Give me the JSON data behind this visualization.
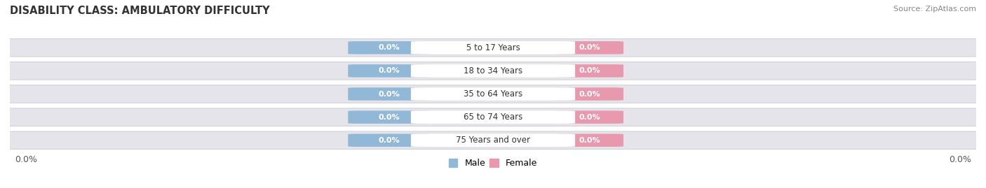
{
  "title": "DISABILITY CLASS: AMBULATORY DIFFICULTY",
  "source": "Source: ZipAtlas.com",
  "categories": [
    "5 to 17 Years",
    "18 to 34 Years",
    "35 to 64 Years",
    "65 to 74 Years",
    "75 Years and over"
  ],
  "male_values": [
    0.0,
    0.0,
    0.0,
    0.0,
    0.0
  ],
  "female_values": [
    0.0,
    0.0,
    0.0,
    0.0,
    0.0
  ],
  "male_color": "#92b8d8",
  "female_color": "#e899ae",
  "bar_bg_color": "#e4e4ea",
  "bar_border_color": "#c8c8d0",
  "center_label_bg": "#ffffff",
  "left_label": "0.0%",
  "right_label": "0.0%",
  "title_fontsize": 10.5,
  "label_fontsize": 9,
  "tick_fontsize": 9,
  "fig_bg_color": "#ffffff",
  "value_label_color": "#ffffff",
  "center_label_color": "#333333"
}
